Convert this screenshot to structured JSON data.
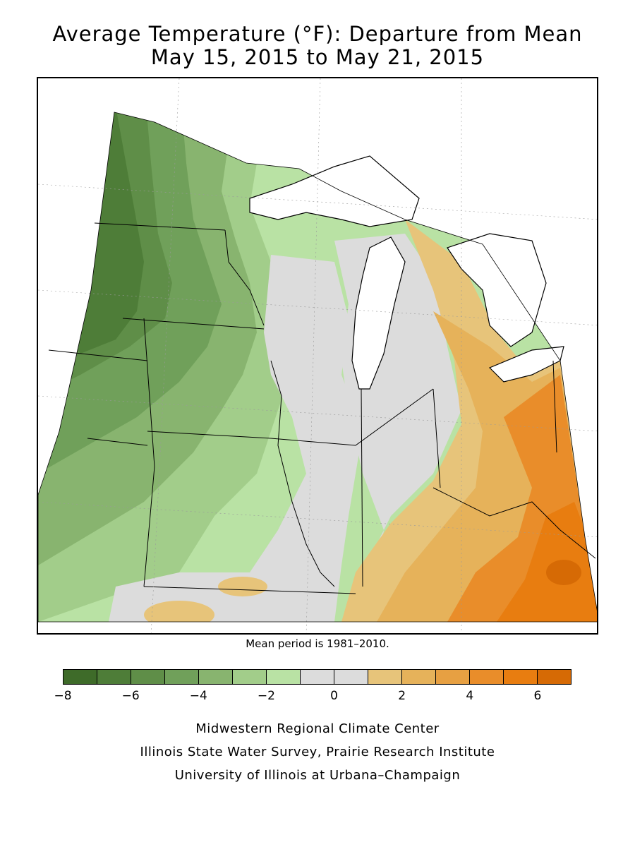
{
  "title": {
    "line1": "Average Temperature (°F): Departure from Mean",
    "line2": "May 15, 2015 to May 21, 2015"
  },
  "mean_note": "Mean period is 1981–2010.",
  "legend": {
    "colors": [
      "#3e6b29",
      "#4e7d38",
      "#5f8e48",
      "#70a05a",
      "#88b46f",
      "#a2cd8a",
      "#b9e2a4",
      "#dcdcdc",
      "#dcdcdc",
      "#e7c47a",
      "#e6b25a",
      "#e7a042",
      "#e98d2a",
      "#e87d10",
      "#d66a05"
    ],
    "ticks": [
      "−8",
      "−6",
      "−4",
      "−2",
      "0",
      "2",
      "4",
      "6"
    ]
  },
  "credits": {
    "line1": "Midwestern Regional Climate Center",
    "line2": "Illinois State Water Survey, Prairie Research Institute",
    "line3": "University of Illinois at Urbana–Champaign"
  },
  "map": {
    "region": "Midwest United States",
    "lake_color": "#ffffff",
    "palette": {
      "dark_green": "#4e7d38",
      "mid_green": "#70a05a",
      "light_green": "#a2cd8a",
      "pale_green": "#b9e2a4",
      "neutral": "#dcdcdc",
      "pale_orange": "#e7c47a",
      "orange": "#e6b25a",
      "deep_orange": "#e98d2a",
      "darkest_orange": "#d66a05"
    }
  }
}
